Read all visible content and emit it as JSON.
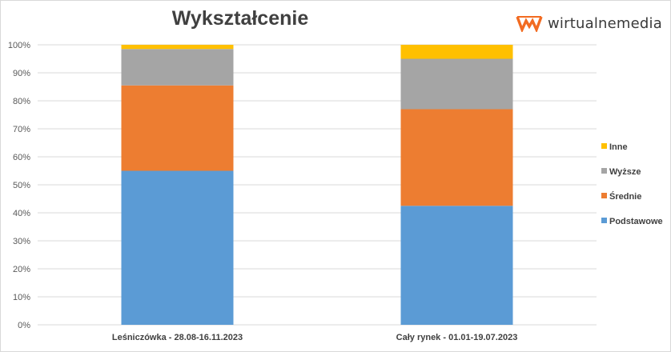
{
  "brand": {
    "name": "wirtualnemedia",
    "accent": "#f26b21"
  },
  "chart_data": {
    "type": "bar",
    "stacked": true,
    "title": "Wykształcenie",
    "categories": [
      "Leśniczówka - 28.08-16.11.2023",
      "Cały rynek - 01.01-19.07.2023"
    ],
    "series": [
      {
        "name": "Podstawowe",
        "color": "#5b9bd5",
        "values": [
          55,
          42.5
        ]
      },
      {
        "name": "Średnie",
        "color": "#ed7d31",
        "values": [
          30.5,
          34.5
        ]
      },
      {
        "name": "Wyższe",
        "color": "#a5a5a5",
        "values": [
          13,
          18
        ]
      },
      {
        "name": "Inne",
        "color": "#ffc000",
        "values": [
          1.5,
          5
        ]
      }
    ],
    "yticks": [
      "0%",
      "10%",
      "20%",
      "30%",
      "40%",
      "50%",
      "60%",
      "70%",
      "80%",
      "90%",
      "100%"
    ],
    "ylim": [
      0,
      100
    ],
    "grid": true,
    "legend_position": "right"
  }
}
